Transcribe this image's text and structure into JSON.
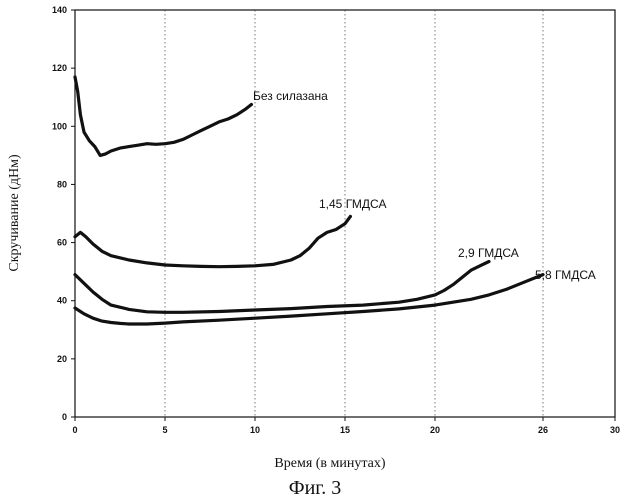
{
  "chart_data": {
    "type": "line",
    "title": "",
    "xlabel": "Время (в минутах)",
    "ylabel": "Скручивание (дНм)",
    "caption": "Фиг. 3",
    "xlim": [
      0,
      30
    ],
    "ylim": [
      0,
      140
    ],
    "x_ticks": [
      0,
      5,
      10,
      15,
      20,
      26,
      30
    ],
    "y_ticks": [
      0,
      20,
      40,
      60,
      80,
      100,
      120,
      140
    ],
    "grid": "dotted",
    "series": [
      {
        "name": "Без силазана",
        "x": [
          0,
          0.15,
          0.3,
          0.5,
          0.8,
          1.1,
          1.4,
          1.7,
          2.0,
          2.5,
          3.0,
          3.5,
          4.0,
          4.5,
          5.0,
          5.5,
          6.0,
          6.5,
          7.0,
          7.5,
          8.0,
          8.5,
          9.0,
          9.5,
          9.8
        ],
        "values": [
          117,
          112,
          104,
          98,
          95,
          93,
          90,
          90.5,
          91.5,
          92.5,
          93,
          93.5,
          94,
          93.8,
          94,
          94.5,
          95.5,
          97,
          98.5,
          100,
          101.5,
          102.5,
          104,
          106,
          107.5
        ]
      },
      {
        "name": "1,45 ГМДСА",
        "x": [
          0,
          0.3,
          0.6,
          1.0,
          1.5,
          2.0,
          3.0,
          4.0,
          5.0,
          6.0,
          7.0,
          8.0,
          9.0,
          10.0,
          11.0,
          12.0,
          12.5,
          13.0,
          13.5,
          14.0,
          14.5,
          15.0,
          15.3
        ],
        "values": [
          62,
          63.5,
          62,
          59.5,
          57,
          55.5,
          54,
          53,
          52.3,
          52,
          51.8,
          51.7,
          51.8,
          52,
          52.5,
          54,
          55.5,
          58,
          61.5,
          63.5,
          64.5,
          66.5,
          69
        ]
      },
      {
        "name": "2,9 ГМДСА",
        "x": [
          0,
          0.5,
          1.0,
          1.5,
          2.0,
          3.0,
          4.0,
          5.0,
          6.0,
          8.0,
          10.0,
          12.0,
          14.0,
          16.0,
          18.0,
          19.0,
          20.0,
          20.5,
          21.0,
          21.5,
          22.0,
          22.5,
          23.0
        ],
        "values": [
          49,
          46,
          43,
          40.5,
          38.5,
          37,
          36.2,
          36,
          36,
          36.3,
          36.8,
          37.3,
          38,
          38.5,
          39.5,
          40.5,
          42,
          43.5,
          45.5,
          48,
          50.5,
          52,
          53.5
        ]
      },
      {
        "name": "5,8 ГМДСА",
        "x": [
          0,
          0.5,
          1.0,
          1.5,
          2.0,
          2.5,
          3.0,
          4.0,
          5.0,
          6.0,
          8.0,
          10.0,
          12.0,
          14.0,
          16.0,
          18.0,
          20.0,
          21.0,
          22.0,
          23.0,
          24.0,
          25.0,
          26.0
        ],
        "values": [
          37.5,
          35.5,
          34,
          33,
          32.5,
          32.2,
          32,
          32,
          32.3,
          32.7,
          33.3,
          34,
          34.7,
          35.5,
          36.3,
          37.2,
          38.5,
          39.5,
          40.5,
          42,
          44,
          46.5,
          49
        ]
      }
    ]
  },
  "series_label_text": {
    "s0": "Без силазана",
    "s1": "1,45 ГМДСА",
    "s2": "2,9 ГМДСА",
    "s3": "5,8 ГМДСА"
  },
  "colors": {
    "line": "#111111",
    "grid": "#555555"
  }
}
